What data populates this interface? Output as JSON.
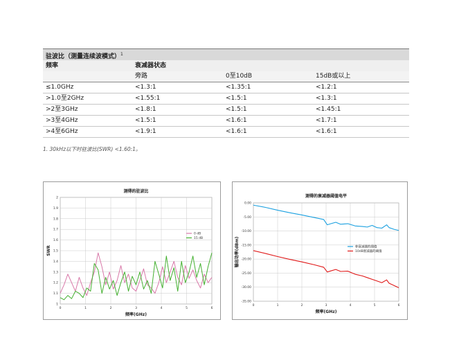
{
  "table": {
    "title": "驻波比（测量连续波模式）",
    "title_sup": "1",
    "headers": {
      "freq": "频率",
      "atten_state": "衰减器状态"
    },
    "subheaders": [
      "旁路",
      "0至10dB",
      "15dB或以上"
    ],
    "rows": [
      {
        "freq": "≤1.0GHz",
        "bypass": "<1.3:1",
        "a0_10": "<1.35:1",
        "a15": "<1.2:1"
      },
      {
        "freq": ">1.0至2GHz",
        "bypass": "<1.55:1",
        "a0_10": "<1.5:1",
        "a15": "<1.3:1"
      },
      {
        "freq": ">2至3GHz",
        "bypass": "<1.8:1",
        "a0_10": "<1.5:1",
        "a15": "<1.45:1"
      },
      {
        "freq": ">3至4GHz",
        "bypass": "<1.5:1",
        "a0_10": "<1.6:1",
        "a15": "<1.7:1"
      },
      {
        "freq": ">4至6GHz",
        "bypass": "<1.9:1",
        "a0_10": "<1.6:1",
        "a15": "<1.6:1"
      }
    ],
    "footnote": "1. 30kHz以下时驻波比(SWR) <1.60:1。"
  },
  "colors": {
    "pink": "#d878a8",
    "green": "#44b030",
    "blue": "#1aa0e0",
    "red": "#e01818"
  },
  "chart_data": [
    {
      "type": "line",
      "title": "测得的驻波比",
      "xlabel": "频率(GHz)",
      "ylabel": "SWR",
      "xlim": [
        0,
        6
      ],
      "ylim": [
        1,
        2
      ],
      "x_ticks": [
        "0",
        "1",
        "2",
        "3",
        "4",
        "5",
        "6"
      ],
      "y_ticks": [
        "1",
        "1.1",
        "1.2",
        "1.3",
        "1.4",
        "1.5",
        "1.6",
        "1.7",
        "1.8",
        "1.9",
        "2"
      ],
      "legend_position": "right",
      "series": [
        {
          "name": "0 dB",
          "color": "#d878a8",
          "x": [
            0,
            0.15,
            0.3,
            0.45,
            0.6,
            0.75,
            0.9,
            1.05,
            1.2,
            1.35,
            1.5,
            1.65,
            1.8,
            1.95,
            2.1,
            2.25,
            2.4,
            2.55,
            2.7,
            2.85,
            3.0,
            3.15,
            3.3,
            3.45,
            3.6,
            3.75,
            3.9,
            4.05,
            4.2,
            4.35,
            4.5,
            4.65,
            4.8,
            4.95,
            5.1,
            5.25,
            5.4,
            5.55,
            5.7,
            5.85,
            6.0
          ],
          "y": [
            1.1,
            1.18,
            1.28,
            1.2,
            1.12,
            1.25,
            1.15,
            1.08,
            1.2,
            1.3,
            1.48,
            1.35,
            1.18,
            1.3,
            1.14,
            1.22,
            1.36,
            1.2,
            1.28,
            1.15,
            1.12,
            1.22,
            1.33,
            1.18,
            1.15,
            1.1,
            1.2,
            1.35,
            1.2,
            1.3,
            1.4,
            1.25,
            1.18,
            1.36,
            1.24,
            1.32,
            1.22,
            1.15,
            1.28,
            1.2,
            1.25
          ]
        },
        {
          "name": "15 dB",
          "color": "#44b030",
          "x": [
            0,
            0.15,
            0.3,
            0.45,
            0.6,
            0.75,
            0.9,
            1.05,
            1.2,
            1.35,
            1.5,
            1.65,
            1.8,
            1.95,
            2.1,
            2.25,
            2.4,
            2.55,
            2.7,
            2.85,
            3.0,
            3.15,
            3.3,
            3.45,
            3.6,
            3.75,
            3.9,
            4.05,
            4.2,
            4.35,
            4.5,
            4.65,
            4.8,
            4.95,
            5.1,
            5.25,
            5.4,
            5.55,
            5.7,
            5.85,
            6.0
          ],
          "y": [
            1.06,
            1.04,
            1.08,
            1.05,
            1.12,
            1.1,
            1.06,
            1.15,
            1.12,
            1.38,
            1.32,
            1.1,
            1.25,
            1.14,
            1.22,
            1.08,
            1.2,
            1.3,
            1.12,
            1.26,
            1.18,
            1.3,
            1.14,
            1.22,
            1.1,
            1.4,
            1.28,
            1.15,
            1.45,
            1.22,
            1.34,
            1.12,
            1.4,
            1.2,
            1.3,
            1.45,
            1.25,
            1.38,
            1.18,
            1.35,
            1.48
          ]
        }
      ]
    },
    {
      "type": "line",
      "title": "测得的衰减器阈值电平",
      "xlabel": "频率(GHz)",
      "ylabel": "输出功率(dBm)",
      "xlim": [
        0,
        6
      ],
      "ylim": [
        -35,
        0
      ],
      "x_ticks": [
        "0",
        "1",
        "2",
        "3",
        "4",
        "5",
        "6"
      ],
      "y_ticks": [
        "0.00",
        "-5.00",
        "-10.00",
        "-15.00",
        "-20.00",
        "-25.00",
        "-30.00",
        "-35.00"
      ],
      "legend_position": "center-right",
      "series": [
        {
          "name": "非衰减器的阈值",
          "color": "#1aa0e0",
          "x": [
            0,
            0.5,
            1.0,
            1.5,
            2.0,
            2.5,
            2.9,
            3.05,
            3.2,
            3.4,
            3.6,
            3.9,
            4.2,
            4.5,
            4.7,
            4.9,
            5.1,
            5.3,
            5.5,
            5.6,
            5.8,
            6.0
          ],
          "y": [
            -0.8,
            -1.6,
            -2.6,
            -3.5,
            -4.3,
            -5.2,
            -5.9,
            -7.8,
            -7.4,
            -6.9,
            -7.6,
            -7.4,
            -8.2,
            -8.4,
            -8.6,
            -8.0,
            -8.8,
            -9.0,
            -7.8,
            -8.8,
            -9.4,
            -9.8
          ]
        },
        {
          "name": "10dB衰减器的阈值",
          "color": "#e01818",
          "x": [
            0,
            0.5,
            1.0,
            1.5,
            2.0,
            2.5,
            2.9,
            3.05,
            3.2,
            3.4,
            3.6,
            3.9,
            4.2,
            4.5,
            4.7,
            4.9,
            5.1,
            5.3,
            5.5,
            5.6,
            5.8,
            6.0
          ],
          "y": [
            -17.0,
            -18.0,
            -19.1,
            -20.1,
            -21.0,
            -22.0,
            -22.9,
            -24.6,
            -24.2,
            -23.7,
            -24.4,
            -24.3,
            -25.4,
            -26.0,
            -26.6,
            -27.2,
            -27.8,
            -28.4,
            -27.4,
            -28.6,
            -29.4,
            -30.2
          ]
        }
      ]
    }
  ]
}
